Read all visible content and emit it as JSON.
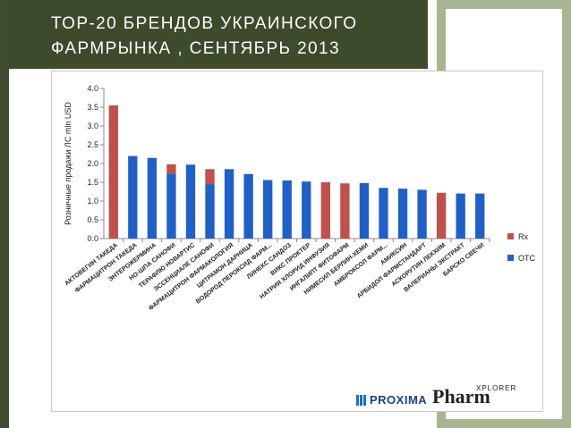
{
  "slide": {
    "title": "ТОР-20 БРЕНДОВ УКРАИНСКОГО\nФАРМРЫНКА , СЕНТЯБРЬ 2013"
  },
  "colors": {
    "rx": "#c0504d",
    "otc": "#1f5fc9",
    "header": "#3d4a2b",
    "panel": "#a9b592"
  },
  "logos": {
    "proxima": "PROXIMA",
    "pharm": "Pharm",
    "xplorer": "XPLORER"
  },
  "chart_data": {
    "type": "bar",
    "stacked": true,
    "ylabel": "Розничные продажи ЛС mln USD",
    "ylim": [
      0,
      4
    ],
    "yticks": [
      "0.0",
      "0.5",
      "1.0",
      "1.5",
      "2.0",
      "2.5",
      "3.0",
      "3.5",
      "4.0"
    ],
    "categories": [
      "АКТОВЕГИН ТАКЕДА",
      "ФАРМАЦИТРОН ТАКЕДА",
      "ЭНТЕРОЖЕРМИНА",
      "НО-ШПА САНОФИ",
      "ТЕРАФЛЮ НОВАРТИС",
      "ЭССЕНЦИАЛЕ САНОФИ",
      "ФАРМАЦИТРОН ФАРМАКОЛОГИЯ",
      "ЦИТРАМОН ДАРНИЦА",
      "ВОДОРОД ПЕРОКСИД ФАРМ...",
      "ЛИНЕКС САНДОЗ",
      "ВИКС ПРОКТЕР",
      "НАТРИЯ ХЛОРИД ИНФУЗИЯ",
      "ИНГАЛИПТ ФИТОФАРМ",
      "НИМЕСИЛ БЕРЛИН-ХЕМИ",
      "АМБРОКСОЛ ФАРМ...",
      "АМИКСИН",
      "АРБИДОЛ ФАРМСТАНДАРТ",
      "АСКОРУТИН ЛЕКХИМ",
      "ВАЛЕРИАНЫ ЭКСТРАКТ",
      "БАРСКО СВЕЧИ"
    ],
    "series": [
      {
        "name": "Rx",
        "values": [
          3.55,
          0,
          0,
          0.25,
          0,
          0.4,
          0,
          0,
          0,
          0,
          0,
          1.5,
          1.47,
          0,
          0,
          0,
          0,
          1.22,
          0,
          0
        ]
      },
      {
        "name": "OTC",
        "values": [
          0,
          2.2,
          2.15,
          1.73,
          1.97,
          1.45,
          1.85,
          1.72,
          1.56,
          1.55,
          1.52,
          0,
          0,
          1.48,
          1.35,
          1.33,
          1.3,
          0,
          1.2,
          1.2
        ]
      }
    ],
    "legend": [
      "Rx",
      "OTC"
    ],
    "legend_position": "right",
    "grid": false
  }
}
